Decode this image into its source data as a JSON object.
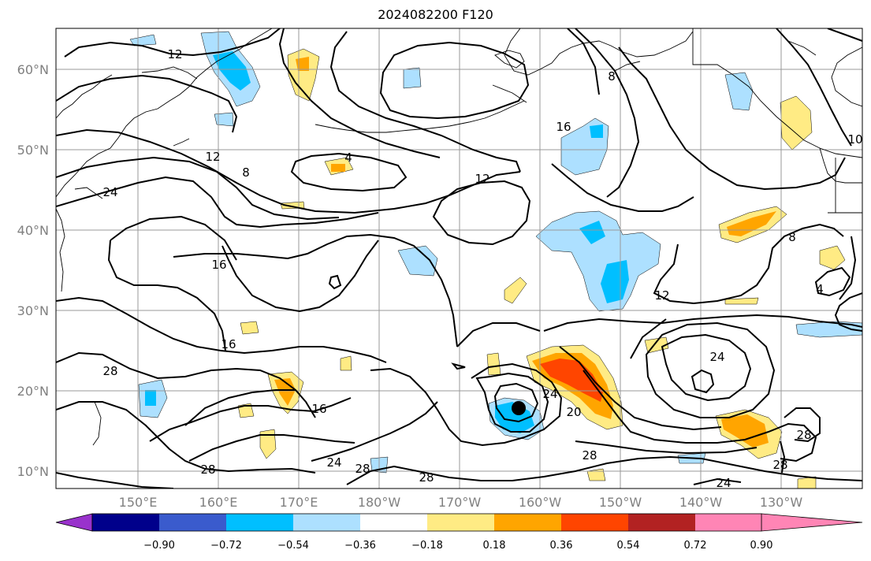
{
  "title": "2024082200 F120",
  "map": {
    "lat_ticks": [
      "60°N",
      "50°N",
      "40°N",
      "30°N",
      "20°N",
      "10°N"
    ],
    "lon_ticks": [
      "150°E",
      "160°E",
      "170°E",
      "180°W",
      "170°W",
      "160°W",
      "150°W",
      "140°W",
      "130°W"
    ],
    "contour_labels": [
      "12",
      "8",
      "16",
      "12",
      "8",
      "24",
      "4",
      "12",
      "16",
      "8",
      "4",
      "16",
      "12",
      "24",
      "28",
      "16",
      "24",
      "28",
      "28",
      "28",
      "20",
      "28",
      "24",
      "28",
      "28",
      "24",
      "10"
    ],
    "storm_marker": "black-dot",
    "colors": {
      "contour": "#000000",
      "coastline": "#000000",
      "grid": "#999999"
    }
  },
  "colorbar": {
    "ticks": [
      "−0.90",
      "−0.72",
      "−0.54",
      "−0.36",
      "−0.18",
      "0.18",
      "0.36",
      "0.54",
      "0.72",
      "0.90"
    ],
    "colors": [
      "#9932CC",
      "#00008B",
      "#3A5BCD",
      "#00BFFF",
      "#ADE0FF",
      "#FFFFFF",
      "#FFEB84",
      "#FFA500",
      "#FF4500",
      "#B22222",
      "#FF85B5"
    ]
  }
}
